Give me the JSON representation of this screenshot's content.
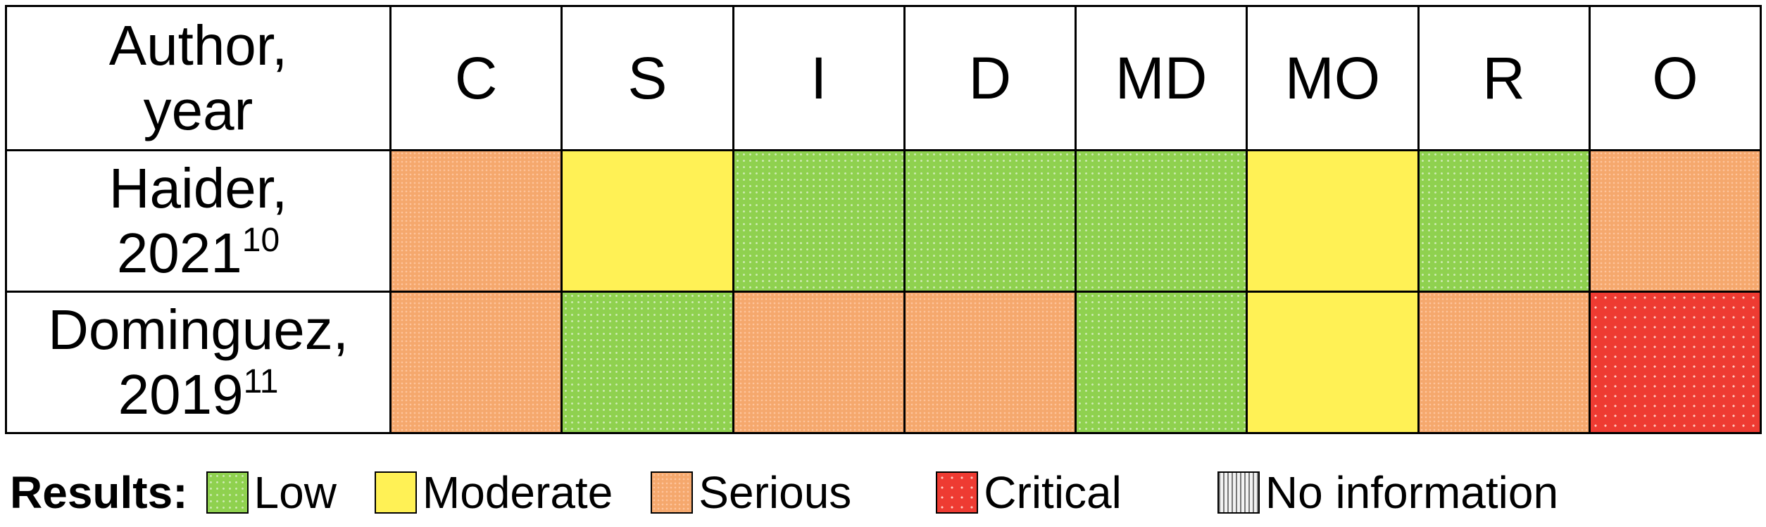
{
  "header": {
    "author_col": [
      "Author,",
      "year"
    ],
    "domains": [
      "C",
      "S",
      "I",
      "D",
      "MD",
      "MO",
      "R",
      "O"
    ]
  },
  "rows": [
    {
      "author": "Haider,",
      "year": "2021",
      "ref": "10",
      "ratings": [
        "Serious",
        "Moderate",
        "Low",
        "Low",
        "Low",
        "Moderate",
        "Low",
        "Serious"
      ]
    },
    {
      "author": "Dominguez,",
      "year": "2019",
      "ref": "11",
      "ratings": [
        "Serious",
        "Low",
        "Serious",
        "Serious",
        "Low",
        "Moderate",
        "Serious",
        "Critical"
      ]
    }
  ],
  "legend": {
    "title": "Results:",
    "items": [
      {
        "label": "Low",
        "key": "low"
      },
      {
        "label": "Moderate",
        "key": "moderate"
      },
      {
        "label": "Serious",
        "key": "serious"
      },
      {
        "label": "Critical",
        "key": "critical"
      },
      {
        "label": "No information",
        "key": "noinfo"
      }
    ]
  },
  "colors": {
    "Low": "#8fd14f",
    "Moderate": "#fff155",
    "Serious": "#f5a86d",
    "Critical": "#ee3b32"
  }
}
